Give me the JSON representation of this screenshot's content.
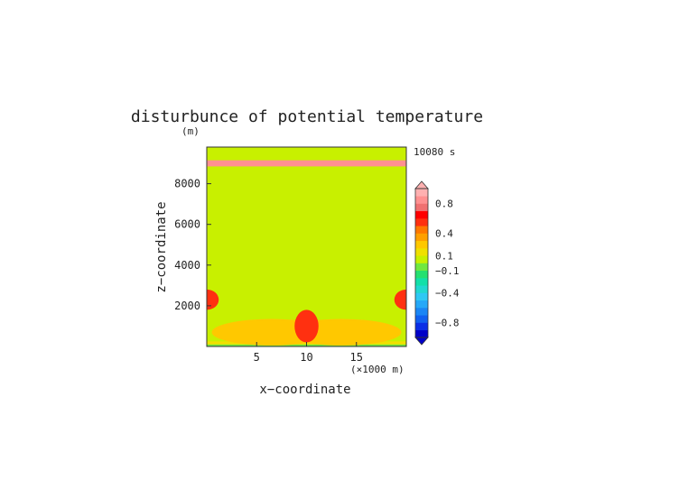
{
  "chart_data": {
    "type": "heatmap",
    "title": "disturbunce of potential temperature",
    "y_unit": "(m)",
    "time_label": "10080 s",
    "xlabel": "x−coordinate",
    "ylabel": "z−coordinate",
    "x_unit": "(×1000 m)",
    "xlim": [
      0,
      20
    ],
    "ylim": [
      0,
      9800
    ],
    "x_ticks": [
      5,
      10,
      15
    ],
    "x_tick_labels": [
      "5",
      "10",
      "15"
    ],
    "y_ticks": [
      2000,
      4000,
      6000,
      8000
    ],
    "y_tick_labels": [
      "2000",
      "4000",
      "6000",
      "8000"
    ],
    "grid": false,
    "colorbar": {
      "levels": [
        -1.0,
        -0.9,
        -0.8,
        -0.7,
        -0.6,
        -0.5,
        -0.4,
        -0.3,
        -0.2,
        -0.1,
        0.0,
        0.1,
        0.2,
        0.3,
        0.4,
        0.5,
        0.6,
        0.7,
        0.8,
        0.9,
        1.0
      ],
      "colors": [
        "#0000c8",
        "#0a2ee6",
        "#1060f0",
        "#1a86f5",
        "#25a8f8",
        "#2ec8f4",
        "#20d8d0",
        "#12e0a8",
        "#25e070",
        "#70e840",
        "#c8f000",
        "#f0e000",
        "#ffc800",
        "#ffa000",
        "#ff7800",
        "#ff3010",
        "#ff0000",
        "#f07070",
        "#ff9090",
        "#ffb0b0"
      ],
      "tick_values": [
        0.8,
        0.4,
        0.1,
        -0.1,
        -0.4,
        -0.8
      ],
      "tick_labels": [
        "0.8",
        "0.4",
        "0.1",
        "−0.1",
        "−0.4",
        "−0.8"
      ]
    },
    "background_value": 0.05,
    "field_features": [
      {
        "feature": "surface layer",
        "value": -0.1,
        "x_range": [
          0,
          20
        ],
        "z_range": [
          0,
          100
        ]
      },
      {
        "feature": "near-surface layer",
        "value": 0.15,
        "x_range": [
          0,
          20
        ],
        "z_range": [
          100,
          250
        ]
      },
      {
        "feature": "left warm lobe",
        "value": 0.25,
        "x_center": 6.5,
        "z_center": 700,
        "x_halfwidth": 6,
        "z_halfheight": 650
      },
      {
        "feature": "right warm lobe",
        "value": 0.25,
        "x_center": 13.5,
        "z_center": 700,
        "x_halfwidth": 6,
        "z_halfheight": 650
      },
      {
        "feature": "central warm column",
        "value": 0.5,
        "x_center": 10,
        "z_center": 1000,
        "x_halfwidth": 1.2,
        "z_halfheight": 800
      },
      {
        "feature": "left boundary maximum",
        "value": 0.5,
        "x_center": 0,
        "z_center": 2300,
        "x_halfwidth": 1.2,
        "z_halfheight": 500
      },
      {
        "feature": "right boundary maximum",
        "value": 0.5,
        "x_center": 20,
        "z_center": 2300,
        "x_halfwidth": 1.2,
        "z_halfheight": 500
      },
      {
        "feature": "upper layer band",
        "value": 0.8,
        "x_range": [
          0,
          20
        ],
        "z_center": 9000,
        "z_halfheight": 150
      }
    ]
  }
}
